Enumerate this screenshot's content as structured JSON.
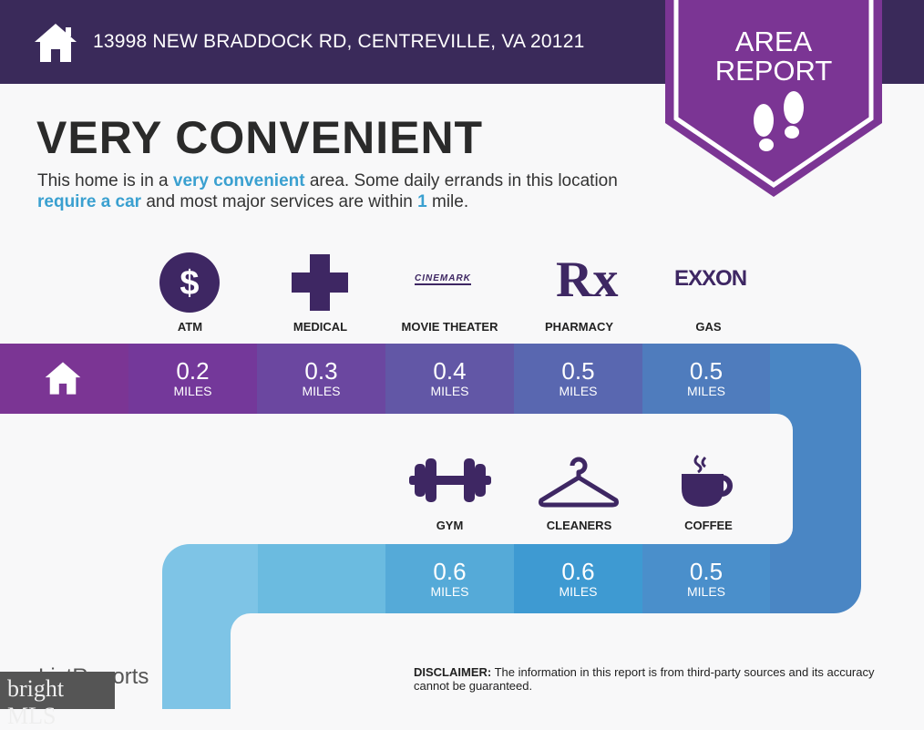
{
  "header": {
    "address": "13998 NEW BRADDOCK RD, CENTREVILLE, VA 20121",
    "badge_line1": "AREA",
    "badge_line2": "REPORT"
  },
  "title": "VERY CONVENIENT",
  "description": {
    "p1": "This home is in a ",
    "h1": "very convenient",
    "p2": " area. Some daily errands in this location ",
    "h2": "require a car",
    "p3": " and most major services are within ",
    "h3": "1",
    "p4": " mile."
  },
  "amenities": [
    {
      "label": "ATM",
      "distance": "0.2",
      "unit": "MILES",
      "icon": "dollar-icon"
    },
    {
      "label": "MEDICAL",
      "distance": "0.3",
      "unit": "MILES",
      "icon": "medical-cross-icon"
    },
    {
      "label": "MOVIE THEATER",
      "distance": "0.4",
      "unit": "MILES",
      "icon": "cinemark-logo",
      "logo_text": "CINEMARK"
    },
    {
      "label": "PHARMACY",
      "distance": "0.5",
      "unit": "MILES",
      "icon": "rx-icon",
      "logo_text": "Rx"
    },
    {
      "label": "GAS",
      "distance": "0.5",
      "unit": "MILES",
      "icon": "exxon-logo",
      "logo_text": "EXXON"
    },
    {
      "label": "GYM",
      "distance": "0.6",
      "unit": "MILES",
      "icon": "dumbbell-icon"
    },
    {
      "label": "CLEANERS",
      "distance": "0.6",
      "unit": "MILES",
      "icon": "hanger-icon"
    },
    {
      "label": "COFFEE",
      "distance": "0.5",
      "unit": "MILES",
      "icon": "coffee-cup-icon"
    }
  ],
  "footer": {
    "brand": "ListReports",
    "disclaimer_label": "DISCLAIMER:",
    "disclaimer": " The information in this report is from third-party sources and its accuracy cannot be guaranteed.",
    "watermark": "bright MLS"
  },
  "colors": {
    "header": "#3a2a5a",
    "badge": "#7b3594",
    "highlight": "#3aa0d0"
  }
}
